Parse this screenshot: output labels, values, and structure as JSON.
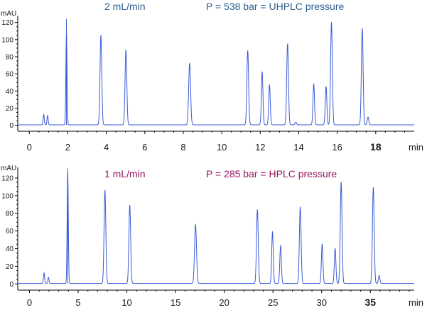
{
  "chart_data": [
    {
      "type": "line",
      "annotation_left": "2 mL/min",
      "annotation_right": "P = 538 bar = UHPLC pressure",
      "annotation_color": "#2a5f8e",
      "line_color": "#3b5bd6",
      "ylabel": "mAU",
      "xunit": "min",
      "xlim": [
        -0.6,
        20
      ],
      "ylim": [
        -7,
        128
      ],
      "yticks": [
        0,
        20,
        40,
        60,
        80,
        100,
        120
      ],
      "xticks": [
        {
          "value": 0,
          "label": "0",
          "bold": false
        },
        {
          "value": 2,
          "label": "2",
          "bold": false
        },
        {
          "value": 4,
          "label": "4",
          "bold": false
        },
        {
          "value": 6,
          "label": "6",
          "bold": false
        },
        {
          "value": 8,
          "label": "8",
          "bold": false
        },
        {
          "value": 10,
          "label": "10",
          "bold": false
        },
        {
          "value": 12,
          "label": "12",
          "bold": false
        },
        {
          "value": 14,
          "label": "14",
          "bold": false
        },
        {
          "value": 16,
          "label": "16",
          "bold": false
        },
        {
          "value": 18,
          "label": "18",
          "bold": true
        }
      ],
      "baseline": 0.5,
      "peaks": [
        {
          "t": 0.75,
          "h": 12,
          "w": 0.03
        },
        {
          "t": 0.95,
          "h": 11,
          "w": 0.03
        },
        {
          "t": 1.93,
          "h": 108,
          "w": 0.03
        },
        {
          "t": 3.72,
          "h": 105,
          "w": 0.045
        },
        {
          "t": 5.02,
          "h": 88,
          "w": 0.045
        },
        {
          "t": 8.33,
          "h": 72,
          "w": 0.05
        },
        {
          "t": 11.35,
          "h": 87,
          "w": 0.045
        },
        {
          "t": 12.1,
          "h": 62,
          "w": 0.04
        },
        {
          "t": 12.48,
          "h": 47,
          "w": 0.04
        },
        {
          "t": 13.42,
          "h": 95,
          "w": 0.045
        },
        {
          "t": 13.85,
          "h": 3,
          "w": 0.04
        },
        {
          "t": 14.78,
          "h": 48,
          "w": 0.04
        },
        {
          "t": 15.42,
          "h": 45,
          "w": 0.04
        },
        {
          "t": 15.7,
          "h": 120,
          "w": 0.045
        },
        {
          "t": 17.3,
          "h": 113,
          "w": 0.045
        },
        {
          "t": 17.6,
          "h": 9,
          "w": 0.04
        }
      ],
      "spikes": [
        {
          "t": 1.93,
          "h": 124
        }
      ]
    },
    {
      "type": "line",
      "annotation_left": "1 mL/min",
      "annotation_right": "P = 285 bar = HPLC pressure",
      "annotation_color": "#99155f",
      "line_color": "#3b5bd6",
      "ylabel": "mAU",
      "xunit": "min",
      "xlim": [
        -1.2,
        39.5
      ],
      "ylim": [
        -7,
        132
      ],
      "yticks": [
        0,
        20,
        40,
        60,
        80,
        100,
        120
      ],
      "xticks": [
        {
          "value": 0,
          "label": "0",
          "bold": false
        },
        {
          "value": 5,
          "label": "5",
          "bold": false
        },
        {
          "value": 10,
          "label": "10",
          "bold": false
        },
        {
          "value": 15,
          "label": "15",
          "bold": false
        },
        {
          "value": 20,
          "label": "20",
          "bold": false
        },
        {
          "value": 25,
          "label": "25",
          "bold": false
        },
        {
          "value": 30,
          "label": "30",
          "bold": false
        },
        {
          "value": 35,
          "label": "35",
          "bold": true
        }
      ],
      "baseline": 0.5,
      "peaks": [
        {
          "t": 1.5,
          "h": 12,
          "w": 0.06
        },
        {
          "t": 1.95,
          "h": 7,
          "w": 0.06
        },
        {
          "t": 3.93,
          "h": 128,
          "w": 0.06
        },
        {
          "t": 7.75,
          "h": 106,
          "w": 0.09
        },
        {
          "t": 10.3,
          "h": 89,
          "w": 0.09
        },
        {
          "t": 17.05,
          "h": 67,
          "w": 0.1
        },
        {
          "t": 23.4,
          "h": 84,
          "w": 0.09
        },
        {
          "t": 24.95,
          "h": 59,
          "w": 0.08
        },
        {
          "t": 25.78,
          "h": 43,
          "w": 0.08
        },
        {
          "t": 27.8,
          "h": 87,
          "w": 0.09
        },
        {
          "t": 30.05,
          "h": 45,
          "w": 0.08
        },
        {
          "t": 31.38,
          "h": 40,
          "w": 0.08
        },
        {
          "t": 32.0,
          "h": 115,
          "w": 0.09
        },
        {
          "t": 35.3,
          "h": 109,
          "w": 0.09
        },
        {
          "t": 35.9,
          "h": 9,
          "w": 0.08
        }
      ],
      "spikes": [
        {
          "t": 3.93,
          "h": 131
        }
      ]
    }
  ]
}
